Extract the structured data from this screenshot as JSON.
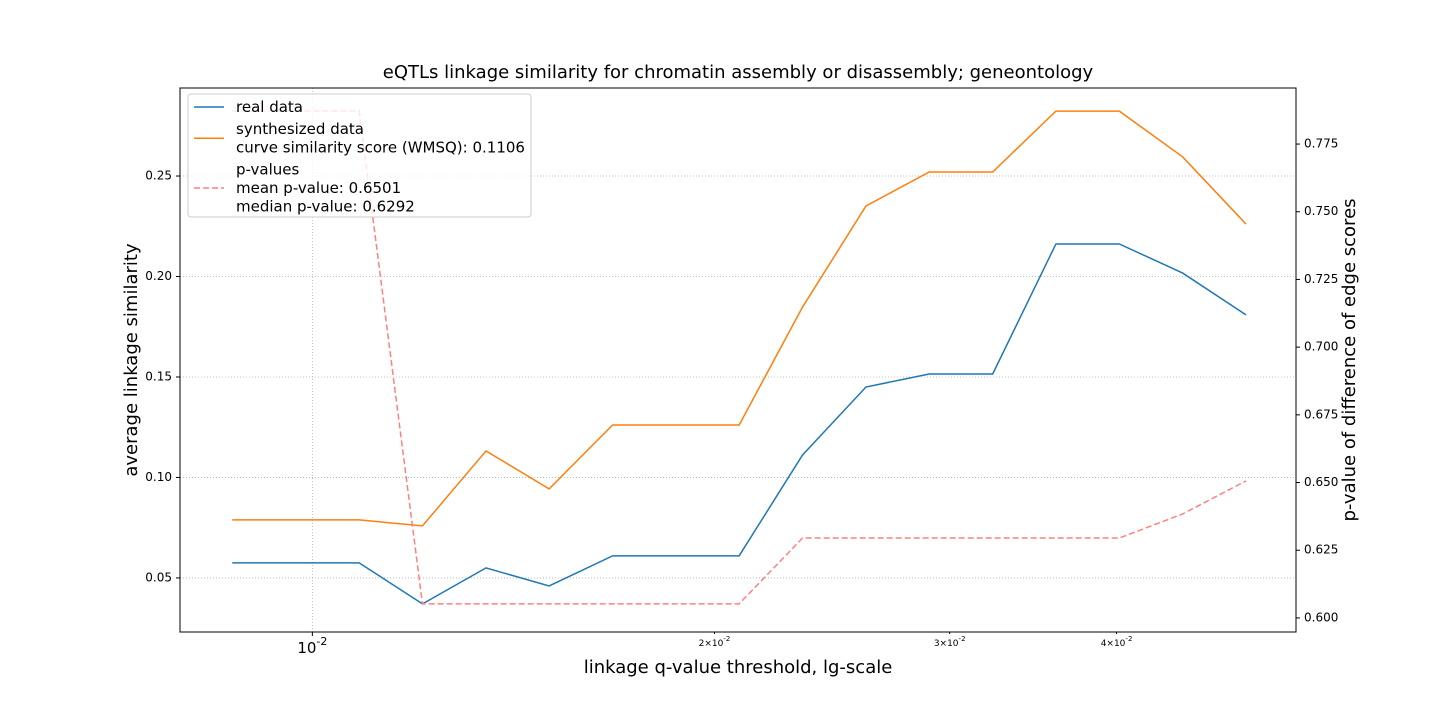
{
  "chart_data": {
    "type": "line",
    "title": "eQTLs linkage similarity for chromatin assembly or disassembly; geneontology",
    "xlabel": "linkage q-value threshold, lg-scale",
    "ylabel": "average linkage similarity",
    "y2label": "p-value of difference of edge scores",
    "xscale": "log",
    "grid": true,
    "legend": "upper left",
    "x": [
      0.00871,
      0.01084,
      0.01209,
      0.01349,
      0.01504,
      0.01678,
      0.02087,
      0.02328,
      0.02597,
      0.02896,
      0.03231,
      0.03603,
      0.04019,
      0.04483,
      0.05
    ],
    "series": [
      {
        "name": "real data",
        "color": "#1f77b4",
        "values": [
          0.0575,
          0.0575,
          0.0371,
          0.055,
          0.046,
          0.061,
          0.061,
          0.1112,
          0.145,
          0.1515,
          0.1515,
          0.2162,
          0.2162,
          0.2017,
          0.1809
        ]
      },
      {
        "name": "synthesized data\ncurve similarity score (WMSQ): 0.1106",
        "color": "#ff7f0e",
        "values": [
          0.0789,
          0.0789,
          0.0759,
          0.1132,
          0.0943,
          0.1261,
          0.1261,
          0.1848,
          0.2351,
          0.252,
          0.252,
          0.2823,
          0.2823,
          0.2595,
          0.2261
        ]
      },
      {
        "name": "p-values\nmean p-value: 0.6501\nmedian p-value: 0.6292",
        "color": "#ff8080",
        "dashed": true,
        "axis": "y2",
        "values": [
          0.7872,
          0.7872,
          0.6052,
          0.6052,
          0.6052,
          0.6052,
          0.6052,
          0.6295,
          0.6295,
          0.6295,
          0.6295,
          0.6295,
          0.6295,
          0.6384,
          0.6506
        ]
      }
    ],
    "xlim": [
      0.00796,
      0.0545
    ],
    "xticks": [
      {
        "value": 0.01,
        "label": "10^-2"
      },
      {
        "value": 0.02,
        "label": "2×10^-2"
      },
      {
        "value": 0.03,
        "label": "3×10^-2"
      },
      {
        "value": 0.04,
        "label": "4×10^-2"
      }
    ],
    "ylim": [
      0.0231,
      0.2938
    ],
    "yticks": [
      0.05,
      {
        "value": 0.1,
        "label": "0.10"
      },
      0.15,
      {
        "value": 0.2,
        "label": "0.20"
      },
      0.25
    ],
    "y2lim": [
      0.5948,
      0.7957
    ],
    "y2ticks": [
      {
        "value": 0.6,
        "label": "0.600"
      },
      0.625,
      {
        "value": 0.65,
        "label": "0.650"
      },
      0.675,
      {
        "value": 0.7,
        "label": "0.700"
      },
      0.725,
      {
        "value": 0.75,
        "label": "0.750"
      },
      0.775
    ]
  }
}
